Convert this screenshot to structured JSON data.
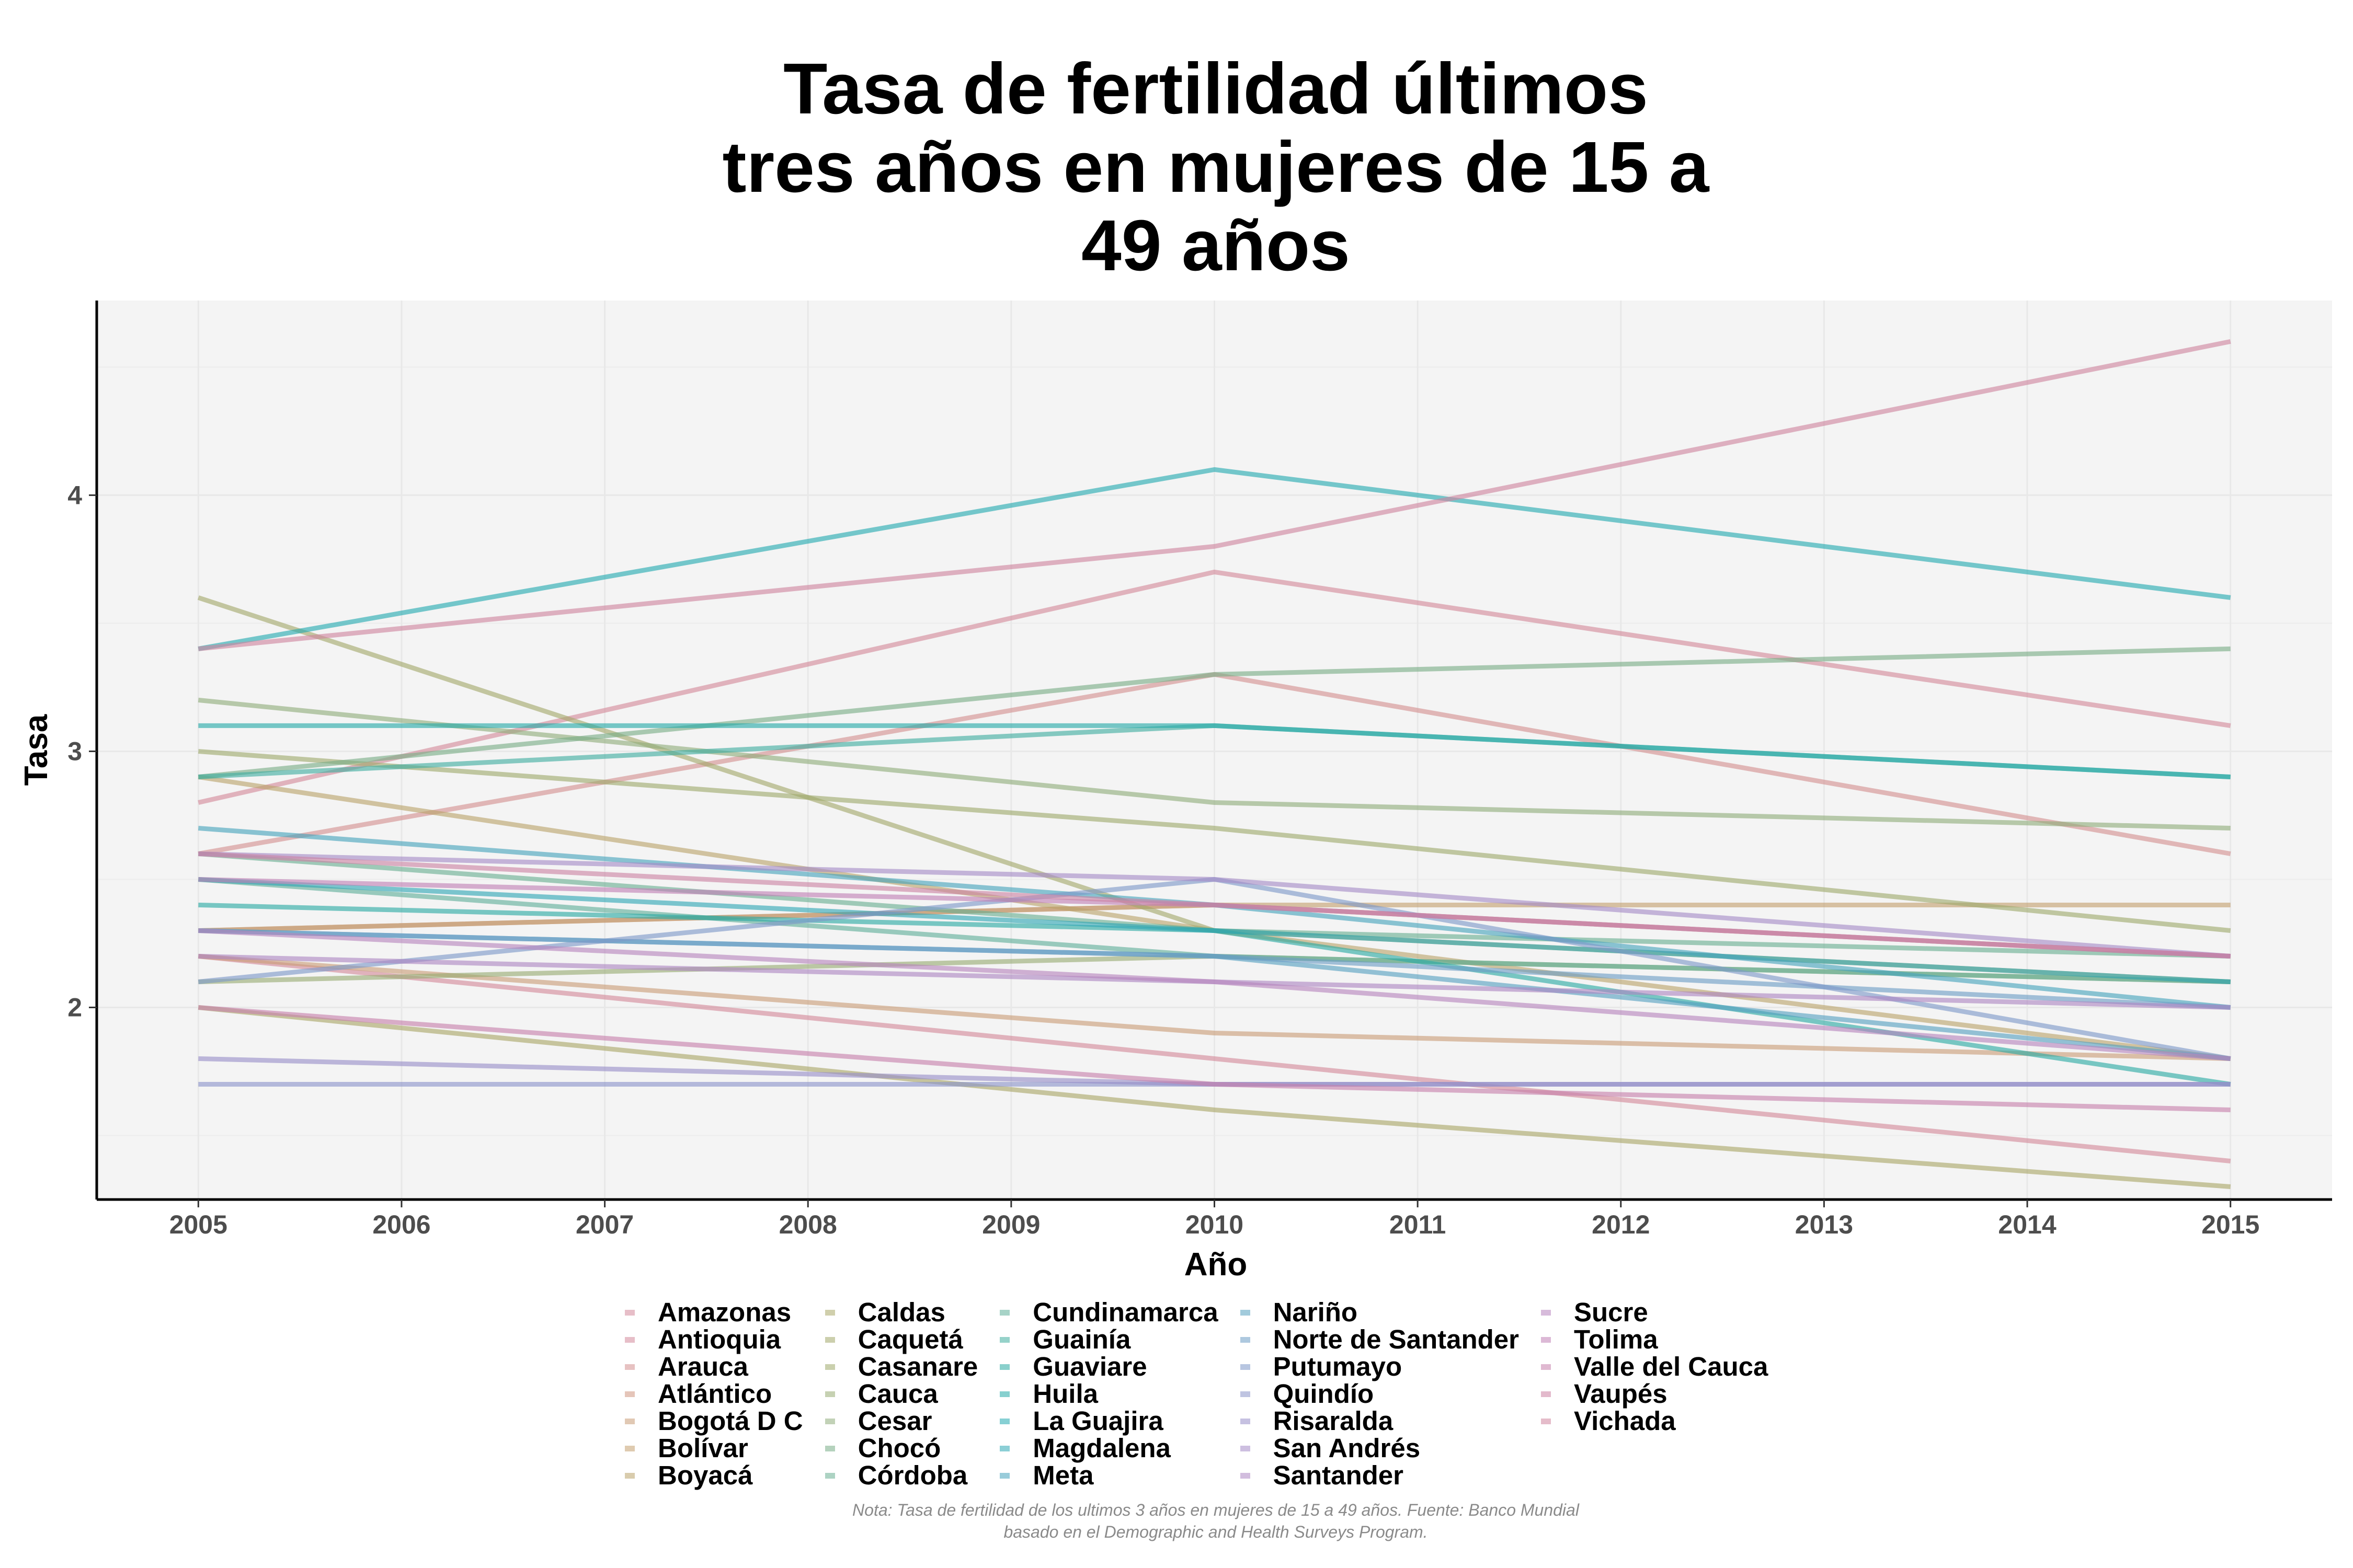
{
  "chart_data": {
    "type": "line",
    "title": "Tasa de fertilidad últimos tres años en mujeres de 15 a 49 años",
    "title_lines": [
      "Tasa de fertilidad últimos",
      "tres años en mujeres de 15 a",
      "49 años"
    ],
    "xlabel": "Año",
    "ylabel": "Tasa",
    "x": [
      2005,
      2010,
      2015
    ],
    "x_ticks": [
      "2005",
      "2006",
      "2007",
      "2008",
      "2009",
      "2010",
      "2011",
      "2012",
      "2013",
      "2014",
      "2015"
    ],
    "xlim": [
      2004.5,
      2015.5
    ],
    "y_ticks": [
      "2",
      "3",
      "4"
    ],
    "ylim": [
      1.25,
      4.76
    ],
    "grid": true,
    "legend_position": "bottom",
    "caption": [
      "Nota: Tasa de fertilidad de los ultimos 3 años en mujeres de 15 a 49 años. Fuente: Banco Mundial",
      "basado en el Demographic and Health Surveys Program."
    ],
    "series": [
      {
        "name": "Amazonas",
        "color": "#d4899a",
        "values": [
          2.8,
          3.7,
          3.1
        ]
      },
      {
        "name": "Antioquia",
        "color": "#d4899a",
        "values": [
          2.2,
          1.8,
          1.4
        ]
      },
      {
        "name": "Arauca",
        "color": "#d48f8f",
        "values": [
          2.6,
          3.3,
          2.6
        ]
      },
      {
        "name": "Atlántico",
        "color": "#d0957f",
        "values": [
          2.3,
          2.4,
          2.2
        ]
      },
      {
        "name": "Bogotá D C",
        "color": "#c99c77",
        "values": [
          2.2,
          1.9,
          1.8
        ]
      },
      {
        "name": "Bolívar",
        "color": "#c4a070",
        "values": [
          2.3,
          2.4,
          2.4
        ]
      },
      {
        "name": "Boyacá",
        "color": "#b9a36a",
        "values": [
          2.9,
          2.3,
          1.8
        ]
      },
      {
        "name": "Caldas",
        "color": "#aaa768",
        "values": [
          2.0,
          1.6,
          1.3
        ]
      },
      {
        "name": "Caquetá",
        "color": "#a3a86a",
        "values": [
          3.6,
          2.3,
          2.1
        ]
      },
      {
        "name": "Casanare",
        "color": "#9ea96c",
        "values": [
          3.0,
          2.7,
          2.3
        ]
      },
      {
        "name": "Cauca",
        "color": "#98ab72",
        "values": [
          2.1,
          2.2,
          2.1
        ]
      },
      {
        "name": "Cesar",
        "color": "#8fad7b",
        "values": [
          3.2,
          2.8,
          2.7
        ]
      },
      {
        "name": "Chocó",
        "color": "#79ad86",
        "values": [
          2.9,
          3.3,
          3.4
        ]
      },
      {
        "name": "Córdoba",
        "color": "#69ae91",
        "values": [
          2.6,
          2.3,
          2.2
        ]
      },
      {
        "name": "Cundinamarca",
        "color": "#5fae99",
        "values": [
          2.5,
          2.2,
          2.1
        ]
      },
      {
        "name": "Guainía",
        "color": "#3fad9f",
        "values": [
          2.9,
          3.1,
          2.9
        ]
      },
      {
        "name": "Guaviare",
        "color": "#2aaaa3",
        "values": [
          2.4,
          2.3,
          1.7
        ]
      },
      {
        "name": "Huila",
        "color": "#25aaa8",
        "values": [
          3.1,
          3.1,
          2.9
        ]
      },
      {
        "name": "La Guajira",
        "color": "#24aab0",
        "values": [
          3.4,
          4.1,
          3.6
        ]
      },
      {
        "name": "Magdalena",
        "color": "#2ea7b5",
        "values": [
          2.5,
          2.3,
          2.1
        ]
      },
      {
        "name": "Meta",
        "color": "#46a3bb",
        "values": [
          2.7,
          2.4,
          2.0
        ]
      },
      {
        "name": "Nariño",
        "color": "#56a0c0",
        "values": [
          2.3,
          2.2,
          1.8
        ]
      },
      {
        "name": "Norte de Santander",
        "color": "#6c9cc5",
        "values": [
          2.3,
          2.2,
          2.0
        ]
      },
      {
        "name": "Putumayo",
        "color": "#7d97c8",
        "values": [
          2.1,
          2.5,
          1.8
        ]
      },
      {
        "name": "Quindío",
        "color": "#8a93c9",
        "values": [
          1.7,
          1.7,
          1.7
        ]
      },
      {
        "name": "Risaralda",
        "color": "#988ec8",
        "values": [
          1.8,
          1.7,
          1.7
        ]
      },
      {
        "name": "San Andrés",
        "color": "#a48ac6",
        "values": [
          2.6,
          2.5,
          2.2
        ]
      },
      {
        "name": "Santander",
        "color": "#ad86c2",
        "values": [
          2.2,
          2.1,
          2.0
        ]
      },
      {
        "name": "Sucre",
        "color": "#b784bd",
        "values": [
          2.3,
          2.1,
          1.8
        ]
      },
      {
        "name": "Tolima",
        "color": "#c07fb5",
        "values": [
          2.5,
          2.4,
          2.2
        ]
      },
      {
        "name": "Valle del Cauca",
        "color": "#c77fab",
        "values": [
          2.0,
          1.7,
          1.6
        ]
      },
      {
        "name": "Vaupés",
        "color": "#cc82a3",
        "values": [
          2.6,
          2.4,
          2.2
        ]
      },
      {
        "name": "Vichada",
        "color": "#cf859e",
        "values": [
          3.4,
          3.8,
          4.6
        ]
      }
    ]
  }
}
